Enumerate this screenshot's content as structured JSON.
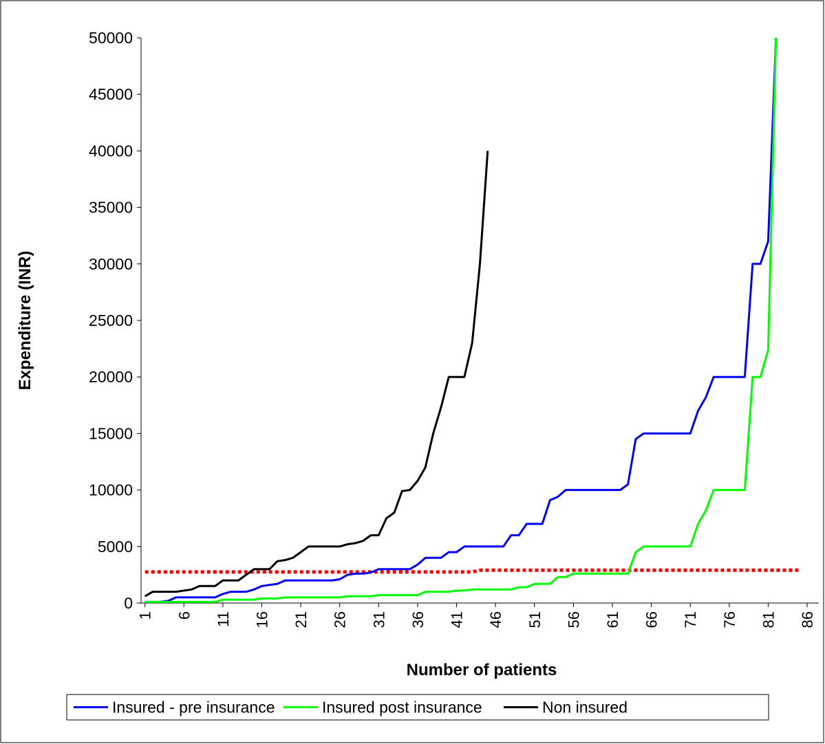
{
  "chart_data": {
    "type": "line",
    "x_label": "Number of patients",
    "y_label": "Expenditure (INR)",
    "x": [
      1,
      2,
      3,
      4,
      5,
      6,
      7,
      8,
      9,
      10,
      11,
      12,
      13,
      14,
      15,
      16,
      17,
      18,
      19,
      20,
      21,
      22,
      23,
      24,
      25,
      26,
      27,
      28,
      29,
      30,
      31,
      32,
      33,
      34,
      35,
      36,
      37,
      38,
      39,
      40,
      41,
      42,
      43,
      44,
      45,
      46,
      47,
      48,
      49,
      50,
      51,
      52,
      53,
      54,
      55,
      56,
      57,
      58,
      59,
      60,
      61,
      62,
      63,
      64,
      65,
      66,
      67,
      68,
      69,
      70,
      71,
      72,
      73,
      74,
      75,
      76,
      77,
      78,
      79,
      80,
      81,
      82,
      83,
      84,
      85
    ],
    "xlim": [
      0.5,
      87.5
    ],
    "xticks": [
      1,
      6,
      11,
      16,
      21,
      26,
      31,
      36,
      41,
      46,
      51,
      56,
      61,
      66,
      71,
      76,
      81,
      86
    ],
    "ylim": [
      0,
      50000
    ],
    "yticks": [
      0,
      5000,
      10000,
      15000,
      20000,
      25000,
      30000,
      35000,
      40000,
      45000,
      50000
    ],
    "legend": "bottom",
    "series": [
      {
        "name": "Insured - pre insurance",
        "color": "#0000ff",
        "values": [
          100,
          100,
          100,
          200,
          500,
          500,
          500,
          500,
          500,
          500,
          800,
          1000,
          1000,
          1000,
          1200,
          1500,
          1600,
          1700,
          2000,
          2000,
          2000,
          2000,
          2000,
          2000,
          2000,
          2100,
          2500,
          2600,
          2600,
          2700,
          3000,
          3000,
          3000,
          3000,
          3000,
          3400,
          4000,
          4000,
          4000,
          4500,
          4500,
          5000,
          5000,
          5000,
          5000,
          5000,
          5000,
          6000,
          6000,
          7000,
          7000,
          7000,
          9100,
          9400,
          10000,
          10000,
          10000,
          10000,
          10000,
          10000,
          10000,
          10000,
          10500,
          14500,
          15000,
          15000,
          15000,
          15000,
          15000,
          15000,
          15000,
          17000,
          18200,
          20000,
          20000,
          20000,
          20000,
          20000,
          30000,
          30000,
          32000,
          50000,
          null,
          null,
          null
        ]
      },
      {
        "name": "Insured post insurance",
        "color": "#00ff00",
        "values": [
          100,
          100,
          100,
          100,
          100,
          100,
          100,
          100,
          100,
          100,
          300,
          300,
          300,
          300,
          300,
          400,
          400,
          400,
          500,
          500,
          500,
          500,
          500,
          500,
          500,
          500,
          600,
          600,
          600,
          600,
          700,
          700,
          700,
          700,
          700,
          700,
          1000,
          1000,
          1000,
          1000,
          1100,
          1100,
          1200,
          1200,
          1200,
          1200,
          1200,
          1200,
          1400,
          1400,
          1700,
          1700,
          1700,
          2300,
          2300,
          2600,
          2600,
          2600,
          2600,
          2600,
          2600,
          2600,
          2600,
          4500,
          5000,
          5000,
          5000,
          5000,
          5000,
          5000,
          5000,
          7000,
          8200,
          10000,
          10000,
          10000,
          10000,
          10000,
          20000,
          20000,
          22400,
          50000,
          null,
          null,
          null
        ]
      },
      {
        "name": "Non insured",
        "color": "#000000",
        "values": [
          600,
          1000,
          1000,
          1000,
          1000,
          1100,
          1200,
          1500,
          1500,
          1500,
          2000,
          2000,
          2000,
          2500,
          3000,
          3000,
          3000,
          3700,
          3800,
          4000,
          4500,
          5000,
          5000,
          5000,
          5000,
          5000,
          5200,
          5300,
          5500,
          6000,
          6000,
          7500,
          8000,
          9900,
          10000,
          10800,
          12000,
          15000,
          17300,
          20000,
          20000,
          20000,
          23000,
          30000,
          40000,
          null,
          null,
          null,
          null,
          null,
          null,
          null,
          null,
          null,
          null,
          null,
          null,
          null,
          null,
          null,
          null,
          null,
          null,
          null,
          null,
          null,
          null,
          null,
          null,
          null,
          null,
          null,
          null,
          null,
          null,
          null,
          null,
          null,
          null,
          null,
          null,
          null,
          null,
          null,
          null
        ]
      },
      {
        "color": "#ff0000",
        "dashed": true,
        "values": [
          2750,
          2750,
          2750,
          2750,
          2750,
          2750,
          2750,
          2750,
          2750,
          2750,
          2750,
          2750,
          2750,
          2750,
          2750,
          2750,
          2750,
          2750,
          2750,
          2750,
          2750,
          2750,
          2750,
          2750,
          2750,
          2750,
          2750,
          2750,
          2750,
          2750,
          2750,
          2750,
          2750,
          2750,
          2750,
          2750,
          2750,
          2750,
          2750,
          2750,
          2750,
          2750,
          2750,
          2900,
          2900,
          2900,
          2900,
          2900,
          2900,
          2900,
          2900,
          2900,
          2900,
          2900,
          2900,
          2900,
          2900,
          2900,
          2900,
          2900,
          2900,
          2900,
          2900,
          2900,
          2900,
          2900,
          2900,
          2900,
          2900,
          2900,
          2900,
          2900,
          2900,
          2900,
          2900,
          2900,
          2900,
          2900,
          2900,
          2900,
          2900,
          2900,
          2900,
          2900,
          2900
        ]
      }
    ]
  }
}
